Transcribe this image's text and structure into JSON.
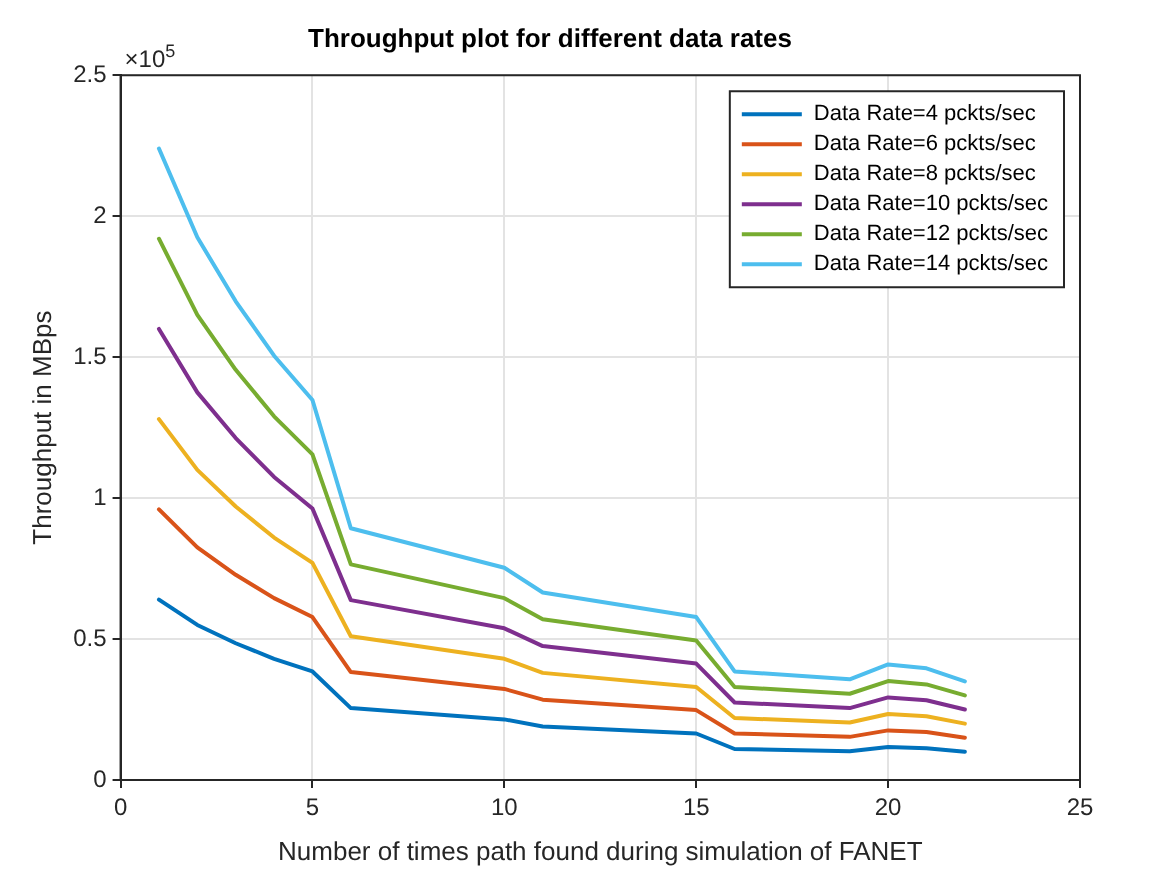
{
  "chart_data": {
    "type": "line",
    "title": "Throughput plot for different data rates",
    "xlabel": "Number of times path found during simulation of FANET",
    "ylabel": "Throughput in MBps",
    "x": [
      1,
      2,
      3,
      4,
      5,
      6,
      10,
      11,
      15,
      16,
      19,
      20,
      21,
      22
    ],
    "series": [
      {
        "name": "Data Rate=4 pckts/sec",
        "color": "#0072bd",
        "values": [
          0.64,
          0.55,
          0.485,
          0.43,
          0.385,
          0.255,
          0.215,
          0.19,
          0.165,
          0.11,
          0.102,
          0.117,
          0.113,
          0.1
        ]
      },
      {
        "name": "Data Rate=6 pckts/sec",
        "color": "#d95319",
        "values": [
          0.96,
          0.825,
          0.728,
          0.645,
          0.578,
          0.383,
          0.323,
          0.285,
          0.248,
          0.165,
          0.153,
          0.176,
          0.17,
          0.15
        ]
      },
      {
        "name": "Data Rate=8 pckts/sec",
        "color": "#edb120",
        "values": [
          1.28,
          1.1,
          0.97,
          0.86,
          0.77,
          0.51,
          0.43,
          0.38,
          0.33,
          0.22,
          0.204,
          0.234,
          0.226,
          0.2
        ]
      },
      {
        "name": "Data Rate=10 pckts/sec",
        "color": "#7e2f8e",
        "values": [
          1.6,
          1.375,
          1.213,
          1.075,
          0.963,
          0.638,
          0.538,
          0.475,
          0.413,
          0.275,
          0.255,
          0.293,
          0.283,
          0.25
        ]
      },
      {
        "name": "Data Rate=12 pckts/sec",
        "color": "#77ac30",
        "values": [
          1.92,
          1.65,
          1.455,
          1.29,
          1.155,
          0.765,
          0.645,
          0.57,
          0.495,
          0.33,
          0.306,
          0.351,
          0.339,
          0.3
        ]
      },
      {
        "name": "Data Rate=14 pckts/sec",
        "color": "#4dbeee",
        "values": [
          2.24,
          1.925,
          1.698,
          1.505,
          1.348,
          0.893,
          0.753,
          0.665,
          0.578,
          0.385,
          0.357,
          0.41,
          0.396,
          0.35
        ]
      }
    ],
    "xlim": [
      0,
      25
    ],
    "xticks": [
      0,
      5,
      10,
      15,
      20,
      25
    ],
    "ylim": [
      0,
      2.5
    ],
    "yticks": [
      0,
      0.5,
      1,
      1.5,
      2,
      2.5
    ],
    "annotations": [
      "×10$^{5}$"
    ],
    "grid": true,
    "legend": "top right",
    "marker": "none",
    "line_style": "solid"
  }
}
